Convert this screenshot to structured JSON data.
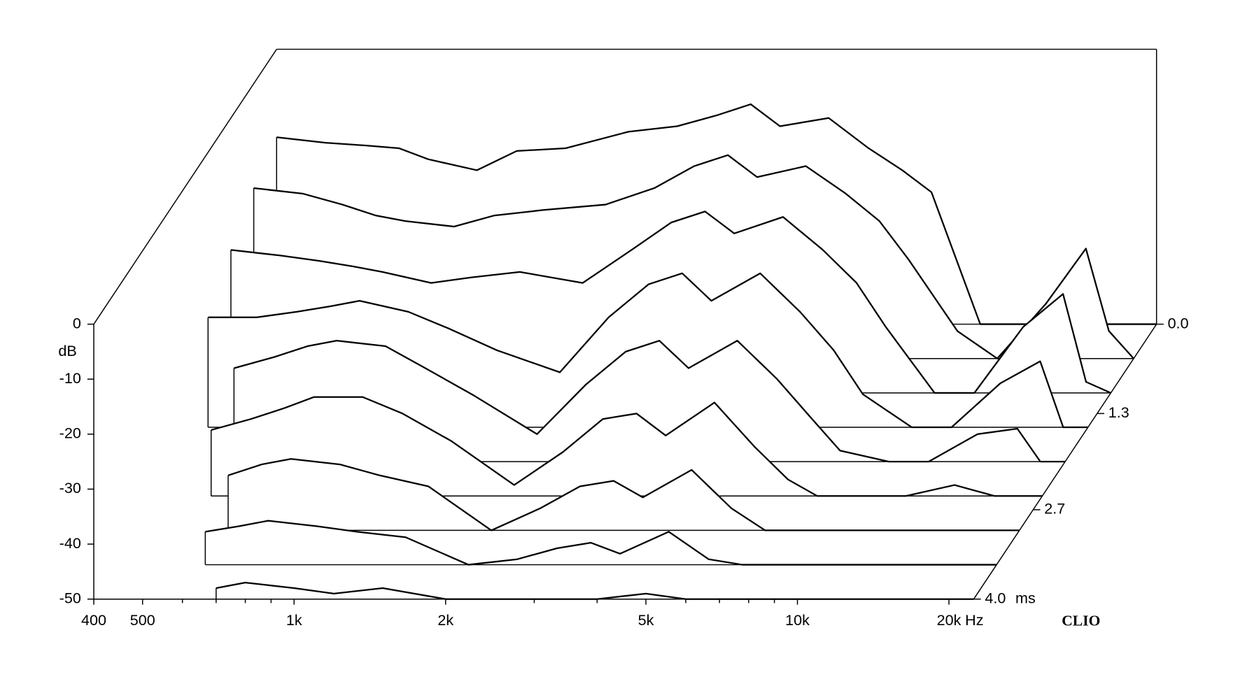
{
  "chart_data": {
    "type": "waterfall",
    "x_log": true,
    "x_unit": "Hz",
    "y_label": "dB",
    "z_unit": "ms",
    "brand": "CLIO",
    "color": "#000000",
    "xlim": [
      400,
      22400
    ],
    "xticks": [
      400,
      500,
      {
        "value": 1000,
        "label": "1k"
      },
      {
        "value": 2000,
        "label": "2k"
      },
      {
        "value": 5000,
        "label": "5k"
      },
      {
        "value": 10000,
        "label": "10k"
      },
      {
        "value": 20000,
        "label": "20k"
      }
    ],
    "xminorticks": [
      600,
      700,
      800,
      900,
      3000,
      4000,
      6000,
      7000,
      8000,
      9000
    ],
    "ylim": [
      -50,
      0
    ],
    "yticks": [
      0,
      -10,
      -20,
      -30,
      -40,
      -50
    ],
    "zlim": [
      0,
      4
    ],
    "zticks": [
      {
        "value": 0,
        "label": "0.0"
      },
      1.3,
      2.7,
      {
        "value": 4,
        "label": "4.0"
      }
    ],
    "frequencies": [
      400,
      500,
      600,
      700,
      800,
      1000,
      1200,
      1500,
      2000,
      2500,
      3000,
      3500,
      4000,
      5000,
      6000,
      7000,
      8000,
      10000,
      12000,
      15000,
      18000,
      20000,
      22400
    ],
    "series": [
      {
        "time": 0,
        "values": [
          -16,
          -17,
          -17.5,
          -18,
          -20,
          -22,
          -18.5,
          -18,
          -15,
          -14,
          -12,
          -10,
          -14,
          -12.5,
          -18,
          -22,
          -26,
          -50,
          -50,
          -50,
          -50,
          -50,
          -50
        ]
      },
      {
        "time": 0.5,
        "values": [
          -19,
          -20,
          -22,
          -24,
          -25,
          -26,
          -24,
          -23,
          -22,
          -19,
          -15,
          -13,
          -17,
          -15,
          -20,
          -25,
          -32,
          -45,
          -50,
          -40,
          -30,
          -45,
          -50
        ]
      },
      {
        "time": 1,
        "values": [
          -24,
          -25,
          -26,
          -27,
          -28,
          -30,
          -29,
          -28,
          -30,
          -24,
          -19,
          -17,
          -21,
          -18,
          -24,
          -30,
          -38,
          -50,
          -50,
          -38,
          -32,
          -48,
          -50
        ]
      },
      {
        "time": 1.5,
        "values": [
          -30,
          -30,
          -29,
          -28,
          -27,
          -29,
          -32,
          -36,
          -40,
          -30,
          -24,
          -22,
          -27,
          -22,
          -29,
          -36,
          -44,
          -50,
          -50,
          -42,
          -38,
          -50,
          -50
        ]
      },
      {
        "time": 2,
        "values": [
          null,
          -33,
          -31,
          -29,
          -28,
          -29,
          -33,
          -38,
          -45,
          -36,
          -30,
          -28,
          -33,
          -28,
          -35,
          -42,
          -48,
          -50,
          -50,
          -45,
          -44,
          -50,
          -50
        ]
      },
      {
        "time": 2.5,
        "values": [
          null,
          -38,
          -36,
          -34,
          -32,
          -32,
          -35,
          -40,
          -48,
          -42,
          -36,
          -35,
          -39,
          -33,
          -41,
          -47,
          -50,
          -50,
          -50,
          -48,
          -50,
          -50,
          -50
        ]
      },
      {
        "time": 3,
        "values": [
          null,
          null,
          -40,
          -38,
          -37,
          -38,
          -40,
          -42,
          -50,
          -46,
          -42,
          -41,
          -44,
          -39,
          -46,
          -50,
          -50,
          -50,
          -50,
          -50,
          -50,
          -50,
          -50
        ]
      },
      {
        "time": 3.5,
        "values": [
          null,
          null,
          -44,
          -43,
          -42,
          -43,
          -44,
          -45,
          -50,
          -49,
          -47,
          -46,
          -48,
          -44,
          -49,
          -50,
          -50,
          -50,
          -50,
          -50,
          -50,
          -50,
          -50
        ]
      },
      {
        "time": 4,
        "values": [
          null,
          null,
          null,
          -48,
          -47,
          -48,
          -49,
          -48,
          -50,
          -50,
          -50,
          -50,
          -50,
          -49,
          -50,
          -50,
          -50,
          -50,
          -50,
          -50,
          -50,
          -50,
          -50
        ]
      }
    ]
  }
}
